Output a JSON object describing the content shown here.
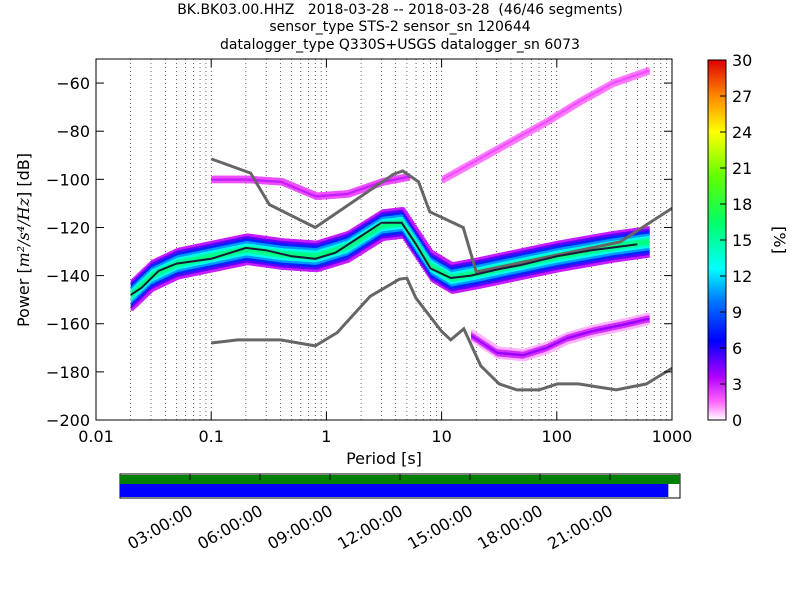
{
  "title": {
    "line1": "BK.BK03.00.HHZ   2018-03-28 -- 2018-03-28  (46/46 segments)",
    "line2": "sensor_type STS-2 sensor_sn 120644",
    "line3": "datalogger_type Q330S+USGS datalogger_sn 6073"
  },
  "colors": {
    "noise_model": "#666666",
    "mean_curve": "#1a1a3a",
    "coverage_green": "#008000",
    "coverage_blue": "#0000ff"
  },
  "chart_data": [
    {
      "type": "heatmap",
      "title": "BK.BK03.00.HHZ   2018-03-28 -- 2018-03-28  (46/46 segments)",
      "xlabel": "Period [s]",
      "ylabel_prefix": "Power [",
      "ylabel_unit": "m²/s⁴/Hz",
      "ylabel_suffix": "] [dB]",
      "xscale": "log",
      "xlim": [
        0.01,
        1000
      ],
      "ylim": [
        -200,
        -50
      ],
      "x_ticks": [
        0.01,
        0.1,
        1,
        10,
        100,
        1000
      ],
      "x_tick_labels": [
        "0.01",
        "0.1",
        "1",
        "10",
        "100",
        "1000"
      ],
      "y_ticks": [
        -200,
        -180,
        -160,
        -140,
        -120,
        -100,
        -80,
        -60
      ],
      "y_tick_labels": [
        "−200",
        "−180",
        "−160",
        "−140",
        "−120",
        "−100",
        "−80",
        "−60"
      ],
      "grid": "dotted vertical",
      "colorbar": {
        "label": "[%]",
        "range": [
          0,
          30
        ],
        "ticks": [
          0,
          3,
          6,
          9,
          12,
          15,
          18,
          21,
          24,
          27,
          30
        ],
        "tick_labels": [
          "0",
          "3",
          "6",
          "9",
          "12",
          "15",
          "18",
          "21",
          "24",
          "27",
          "30"
        ]
      },
      "series": [
        {
          "role": "noise-model-high",
          "x": [
            0.1,
            0.22,
            0.32,
            0.8,
            3.8,
            4.6,
            6.3,
            7.9,
            15.4,
            20,
            354.8,
            1000
          ],
          "y": [
            -91.5,
            -97.4,
            -110.5,
            -120,
            -98,
            -96.5,
            -101,
            -113.5,
            -120,
            -138.5,
            -126,
            -112
          ]
        },
        {
          "role": "noise-model-low",
          "x": [
            0.1,
            0.17,
            0.4,
            0.8,
            1.24,
            2.4,
            4.3,
            5,
            6,
            10,
            12,
            15.6,
            21.9,
            31.6,
            45,
            70,
            101,
            154,
            328,
            600,
            1000
          ],
          "y": [
            -168,
            -166.7,
            -166.7,
            -169.2,
            -163.7,
            -148.6,
            -141.5,
            -141.1,
            -149.4,
            -163.2,
            -166.7,
            -162.1,
            -177.5,
            -185,
            -187.5,
            -187.5,
            -185,
            -185,
            -187.5,
            -185,
            -178.5
          ]
        },
        {
          "role": "mean",
          "x": [
            0.02,
            0.025,
            0.035,
            0.05,
            0.1,
            0.2,
            0.3,
            0.5,
            0.8,
            1.2,
            1.8,
            3,
            4.5,
            6,
            8,
            12,
            18,
            30,
            50,
            100,
            200,
            500
          ],
          "y": [
            -148,
            -145,
            -138,
            -135,
            -133,
            -128.5,
            -129.5,
            -132,
            -133,
            -130.5,
            -125,
            -118,
            -118,
            -127,
            -137,
            -141,
            -140,
            -137.5,
            -135.5,
            -132,
            -129.5,
            -127
          ]
        }
      ],
      "density_ridges": [
        {
          "name": "main",
          "x": [
            0.02,
            0.03,
            0.05,
            0.1,
            0.2,
            0.4,
            0.8,
            1.5,
            3,
            4.5,
            6,
            8,
            12,
            20,
            50,
            100,
            300,
            600
          ],
          "y": [
            -148,
            -140,
            -135,
            -132,
            -129,
            -131,
            -132,
            -128,
            -119,
            -118,
            -127,
            -136,
            -141,
            -139,
            -135,
            -132,
            -128,
            -126
          ],
          "pct": 16
        },
        {
          "name": "upper-band",
          "x": [
            0.1,
            0.2,
            0.4,
            0.8,
            1.5,
            3,
            5
          ],
          "y": [
            -100,
            -100,
            -101,
            -107,
            -106,
            -101,
            -99
          ],
          "pct": 3
        },
        {
          "name": "high-branch",
          "x": [
            10,
            20,
            40,
            80,
            150,
            300,
            600
          ],
          "y": [
            -100,
            -92,
            -84,
            -76,
            -68,
            -60,
            -55
          ],
          "pct": 2
        },
        {
          "name": "low-branch",
          "x": [
            18,
            30,
            50,
            80,
            120,
            200,
            400,
            600
          ],
          "y": [
            -165,
            -172,
            -173,
            -170,
            -166,
            -163,
            -160,
            -158
          ],
          "pct": 4
        }
      ]
    },
    {
      "type": "bar",
      "name": "data-coverage",
      "x_tick_labels": [
        "03:00:00",
        "06:00:00",
        "09:00:00",
        "12:00:00",
        "15:00:00",
        "18:00:00",
        "21:00:00"
      ],
      "x_ticks_hours": [
        3,
        6,
        9,
        12,
        15,
        18,
        21
      ],
      "range_hours": [
        0,
        24
      ],
      "rows": [
        {
          "name": "green",
          "start_hours": 0,
          "end_hours": 24
        },
        {
          "name": "blue",
          "start_hours": 0,
          "end_hours": 23.5
        }
      ]
    }
  ]
}
